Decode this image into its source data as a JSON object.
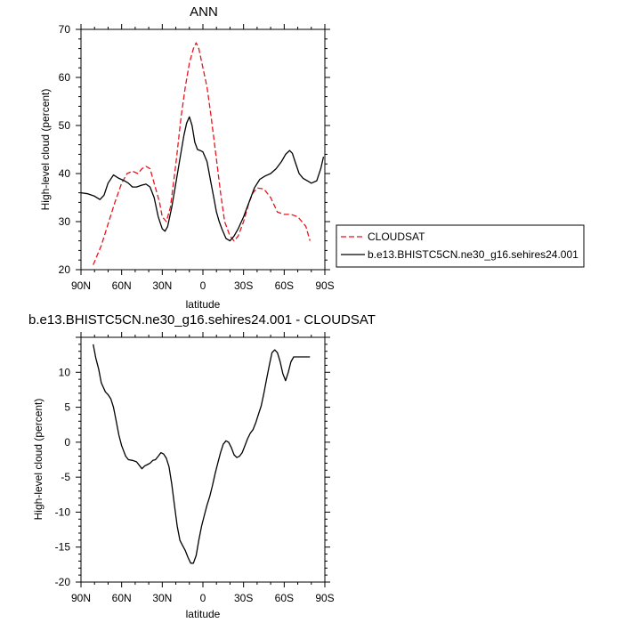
{
  "chart_data": [
    {
      "type": "line",
      "title": "ANN",
      "xlabel": "latitude",
      "ylabel": "High-level cloud (percent)",
      "xlim": [
        90,
        -90
      ],
      "ylim": [
        20,
        70
      ],
      "xticks": [
        90,
        60,
        30,
        0,
        -30,
        -60,
        -90
      ],
      "xtick_labels": [
        "90N",
        "60N",
        "30N",
        "0",
        "30S",
        "60S",
        "90S"
      ],
      "yticks": [
        20,
        30,
        40,
        50,
        60,
        70
      ],
      "ytick_labels": [
        "20",
        "30",
        "40",
        "50",
        "60",
        "70"
      ],
      "legend_position": "outside-right",
      "series": [
        {
          "name": "CLOUDSAT",
          "color": "#e8141d",
          "dash": "dashed",
          "x": [
            81,
            75,
            70,
            65,
            60,
            56,
            52,
            48,
            45,
            42,
            39,
            36,
            32,
            30,
            27,
            24,
            20,
            16,
            13,
            10,
            7,
            5,
            3,
            0,
            -3,
            -6,
            -10,
            -13,
            -16,
            -20,
            -23,
            -26,
            -30,
            -34,
            -37,
            -40,
            -45,
            -50,
            -55,
            -60,
            -65,
            -70,
            -76,
            -79
          ],
          "y": [
            21,
            25,
            29.5,
            34,
            38,
            40,
            40.5,
            40,
            41,
            41.5,
            41,
            38,
            34,
            31,
            30,
            33,
            42,
            52,
            58,
            63,
            66,
            67.2,
            66,
            62,
            58,
            52,
            43,
            36,
            30,
            27,
            26,
            27,
            30,
            34,
            36,
            37,
            36.8,
            35,
            32,
            31.5,
            31.5,
            31,
            29,
            26
          ]
        },
        {
          "name": "b.e13.BHISTC5CN.ne30_g16.sehires24.001",
          "color": "#000000",
          "dash": "solid",
          "x": [
            90,
            85,
            80,
            76,
            73,
            70,
            66,
            62,
            58,
            55,
            52,
            49,
            45,
            42,
            39,
            36,
            33,
            30,
            28,
            26,
            23,
            20,
            17,
            14,
            12,
            10,
            8,
            6,
            4,
            2,
            0,
            -3,
            -6,
            -8,
            -10,
            -12,
            -14,
            -17,
            -20,
            -23,
            -26,
            -30,
            -34,
            -38,
            -42,
            -46,
            -50,
            -54,
            -58,
            -61,
            -64,
            -66,
            -68,
            -71,
            -74,
            -77,
            -80,
            -84,
            -87,
            -89
          ],
          "y": [
            36,
            35.8,
            35.3,
            34.6,
            35.5,
            38,
            39.7,
            39,
            38.5,
            38,
            37.2,
            37.2,
            37.6,
            37.8,
            37.2,
            35,
            31,
            28.5,
            28,
            29,
            33,
            38,
            43,
            48,
            50.5,
            51.8,
            50,
            46.5,
            45,
            44.8,
            44.5,
            42.5,
            38,
            35,
            32,
            30,
            28.5,
            26.5,
            26,
            27,
            28.5,
            31,
            34,
            37,
            38.8,
            39.5,
            40,
            41,
            42.5,
            44,
            44.8,
            44.2,
            42.5,
            40,
            39,
            38.5,
            38,
            38.5,
            41,
            43.5
          ]
        }
      ]
    },
    {
      "type": "line",
      "title": "b.e13.BHISTC5CN.ne30_g16.sehires24.001 - CLOUDSAT",
      "xlabel": "latitude",
      "ylabel": "High-level cloud (percent)",
      "xlim": [
        90,
        -90
      ],
      "ylim": [
        -20,
        15
      ],
      "xticks": [
        90,
        60,
        30,
        0,
        -30,
        -60,
        -90
      ],
      "xtick_labels": [
        "90N",
        "60N",
        "30N",
        "0",
        "30S",
        "60S",
        "90S"
      ],
      "yticks": [
        -20,
        -15,
        -10,
        -5,
        0,
        5,
        10
      ],
      "ytick_labels": [
        "-20",
        "-15",
        "-10",
        "-5",
        "0",
        "5",
        "10"
      ],
      "series": [
        {
          "color": "#000000",
          "dash": "solid",
          "x": [
            81,
            79,
            77,
            75,
            72,
            70,
            68,
            66,
            64,
            62,
            60,
            57,
            55,
            52,
            49,
            47,
            45,
            43,
            41,
            39,
            37,
            35,
            33,
            31,
            29,
            27,
            25,
            23,
            21,
            19,
            17,
            15,
            13,
            11,
            9,
            7,
            5,
            3,
            1,
            -1,
            -3,
            -5,
            -7,
            -9,
            -11,
            -13,
            -15,
            -17,
            -19,
            -21,
            -23,
            -25,
            -27,
            -29,
            -31,
            -33,
            -35,
            -37,
            -39,
            -41,
            -43,
            -45,
            -47,
            -49,
            -51,
            -53,
            -55,
            -57,
            -59,
            -61,
            -63,
            -65,
            -67,
            -69,
            -71,
            -73,
            -75,
            -77,
            -79
          ],
          "y": [
            14,
            12,
            10.5,
            8.5,
            7.2,
            6.8,
            6.2,
            5,
            3,
            1,
            -0.5,
            -2,
            -2.5,
            -2.6,
            -2.8,
            -3.3,
            -3.8,
            -3.4,
            -3.2,
            -3.0,
            -2.6,
            -2.5,
            -2.0,
            -1.5,
            -1.7,
            -2.3,
            -3.5,
            -6.0,
            -9.0,
            -12.0,
            -14.0,
            -14.8,
            -15.5,
            -16.5,
            -17.3,
            -17.3,
            -16.2,
            -14.0,
            -12.0,
            -10.5,
            -9.0,
            -7.8,
            -6.2,
            -4.5,
            -3.0,
            -1.5,
            -0.3,
            0.2,
            0.0,
            -0.8,
            -1.8,
            -2.2,
            -2.0,
            -1.5,
            -0.5,
            0.5,
            1.3,
            1.8,
            2.8,
            4.0,
            5.2,
            7.0,
            9.0,
            11.0,
            12.8,
            13.2,
            12.8,
            11.5,
            9.8,
            8.8,
            10.0,
            11.5,
            12.2,
            12.2,
            12.2,
            12.2,
            12.2,
            12.2,
            12.2
          ]
        }
      ]
    }
  ]
}
